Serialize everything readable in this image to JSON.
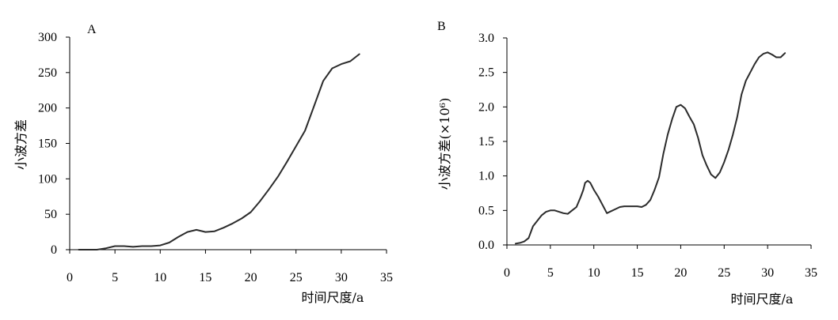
{
  "chart_data": [
    {
      "type": "line",
      "panel_label": "A",
      "xlabel": "时间尺度/a",
      "ylabel": "小波方差",
      "xlim": [
        0,
        35
      ],
      "ylim": [
        0,
        300
      ],
      "xticks": [
        0,
        5,
        10,
        15,
        20,
        25,
        30,
        35
      ],
      "yticks": [
        0,
        50,
        100,
        150,
        200,
        250,
        300
      ],
      "grid": false,
      "series": [
        {
          "x": [
            1,
            2,
            3,
            4,
            5,
            6,
            7,
            8,
            9,
            10,
            11,
            12,
            13,
            14,
            15,
            16,
            17,
            18,
            19,
            20,
            21,
            22,
            23,
            24,
            25,
            26,
            27,
            28,
            29,
            30,
            31,
            32
          ],
          "values": [
            0,
            0,
            0,
            2,
            5,
            5,
            4,
            5,
            5,
            6,
            10,
            18,
            25,
            28,
            25,
            26,
            31,
            37,
            44,
            53,
            68,
            85,
            103,
            124,
            146,
            168,
            203,
            238,
            256,
            262,
            266,
            276
          ]
        }
      ]
    },
    {
      "type": "line",
      "panel_label": "B",
      "xlabel": "时间尺度/a",
      "ylabel": "小波方差(×10⁶)",
      "xlim": [
        0,
        35
      ],
      "ylim": [
        0,
        3.0
      ],
      "xticks": [
        0,
        5,
        10,
        15,
        20,
        25,
        30,
        35
      ],
      "yticks": [
        "0.0",
        "0.5",
        "1.0",
        "1.5",
        "2.0",
        "2.5",
        "3.0"
      ],
      "grid": false,
      "series": [
        {
          "x": [
            1,
            1.5,
            2,
            2.5,
            3,
            3.5,
            4,
            4.5,
            5,
            5.5,
            6,
            6.5,
            7,
            7.5,
            8,
            8.5,
            8.8,
            9,
            9.3,
            9.6,
            10,
            10.5,
            11,
            11.5,
            12,
            12.5,
            13,
            13.5,
            14,
            14.5,
            15,
            15.5,
            16,
            16.5,
            17,
            17.5,
            18,
            18.5,
            19,
            19.5,
            20,
            20.5,
            21,
            21.5,
            22,
            22.5,
            23,
            23.5,
            24,
            24.5,
            25,
            25.5,
            26,
            26.5,
            27,
            27.5,
            28,
            28.5,
            29,
            29.5,
            30,
            30.5,
            31,
            31.5,
            32
          ],
          "values": [
            0.02,
            0.03,
            0.05,
            0.1,
            0.27,
            0.35,
            0.43,
            0.48,
            0.5,
            0.5,
            0.48,
            0.46,
            0.45,
            0.5,
            0.55,
            0.7,
            0.8,
            0.9,
            0.93,
            0.9,
            0.8,
            0.7,
            0.58,
            0.46,
            0.49,
            0.52,
            0.55,
            0.56,
            0.56,
            0.56,
            0.56,
            0.55,
            0.58,
            0.65,
            0.8,
            0.98,
            1.32,
            1.6,
            1.82,
            2.0,
            2.03,
            1.98,
            1.86,
            1.75,
            1.55,
            1.3,
            1.15,
            1.02,
            0.97,
            1.05,
            1.2,
            1.38,
            1.6,
            1.85,
            2.18,
            2.38,
            2.5,
            2.62,
            2.72,
            2.77,
            2.79,
            2.76,
            2.72,
            2.72,
            2.78
          ]
        }
      ]
    }
  ]
}
